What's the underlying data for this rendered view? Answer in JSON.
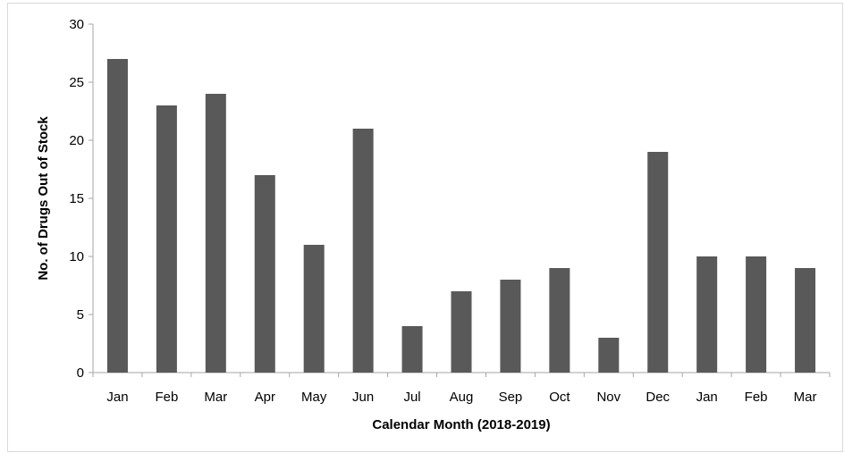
{
  "chart_data": {
    "type": "bar",
    "categories": [
      "Jan",
      "Feb",
      "Mar",
      "Apr",
      "May",
      "Jun",
      "Jul",
      "Aug",
      "Sep",
      "Oct",
      "Nov",
      "Dec",
      "Jan",
      "Feb",
      "Mar"
    ],
    "values": [
      27,
      23,
      24,
      17,
      11,
      21,
      4,
      7,
      8,
      9,
      3,
      19,
      10,
      10,
      9
    ],
    "title": "",
    "xlabel": "Calendar Month (2018-2019)",
    "ylabel": "No. of Drugs Out of Stock",
    "ylim": [
      0,
      30
    ],
    "yticks": [
      0,
      5,
      10,
      15,
      20,
      25,
      30
    ],
    "grid": false,
    "legend": "none",
    "bar_color": "#595959"
  }
}
